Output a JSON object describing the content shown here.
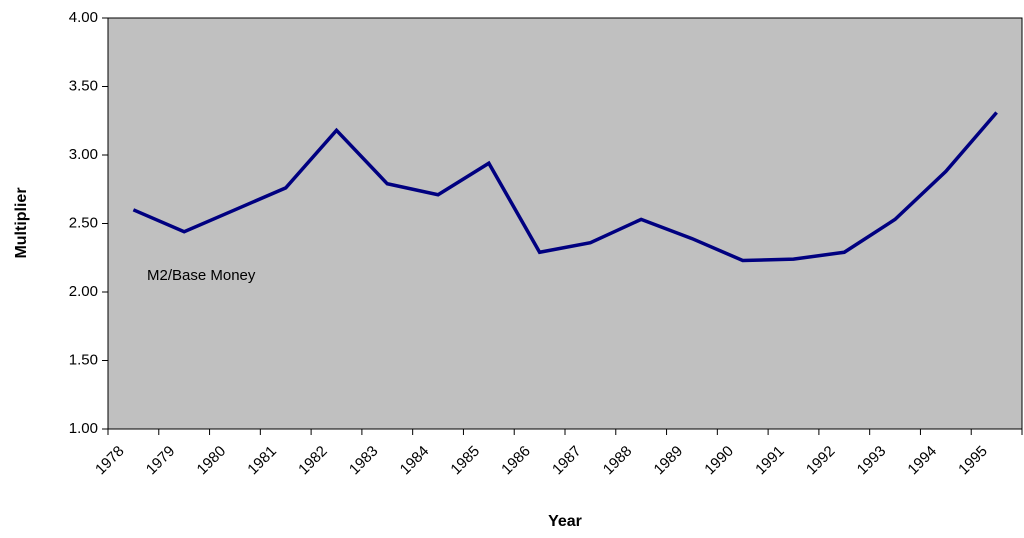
{
  "chart_data": {
    "type": "line",
    "x_label": "Year",
    "y_label": "Multiplier",
    "annotation": "M2/Base Money",
    "categories": [
      "1978",
      "1979",
      "1980",
      "1981",
      "1982",
      "1983",
      "1984",
      "1985",
      "1986",
      "1987",
      "1988",
      "1989",
      "1990",
      "1991",
      "1992",
      "1993",
      "1994",
      "1995"
    ],
    "series": [
      {
        "name": "M2/Base Money",
        "color": "#000080",
        "values": [
          2.6,
          2.44,
          2.6,
          2.76,
          3.18,
          2.79,
          2.71,
          2.94,
          2.29,
          2.36,
          2.53,
          2.39,
          2.23,
          2.24,
          2.29,
          2.53,
          2.88,
          3.31
        ]
      }
    ],
    "ylim": [
      1,
      4
    ],
    "yticks": [
      {
        "value": 1,
        "label": "1.00"
      },
      {
        "value": 1.5,
        "label": "1.50"
      },
      {
        "value": 2,
        "label": "2.00"
      },
      {
        "value": 2.5,
        "label": "2.50"
      },
      {
        "value": 3,
        "label": "3.00"
      },
      {
        "value": 3.5,
        "label": "3.50"
      },
      {
        "value": 4,
        "label": "4.00"
      }
    ],
    "background": "#c0c0c0",
    "grid": false
  }
}
